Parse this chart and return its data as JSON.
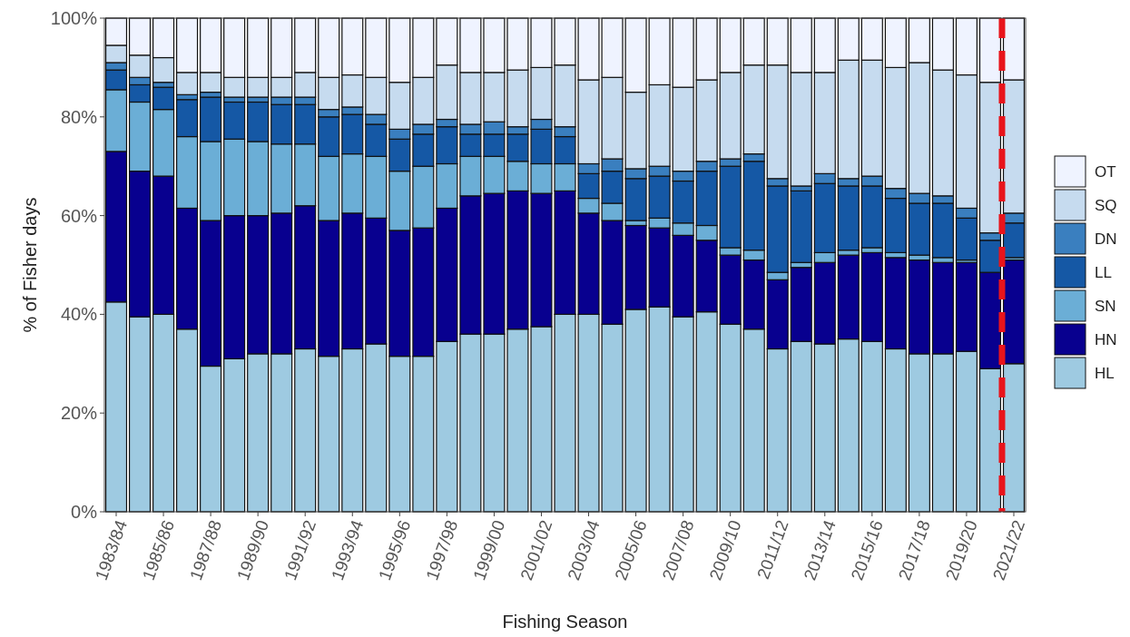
{
  "chart_data": {
    "type": "bar",
    "stacked": true,
    "xlabel": "Fishing Season",
    "ylabel": "% of Fisher days",
    "categories": [
      "1983/84",
      null,
      "1985/86",
      null,
      "1987/88",
      null,
      "1989/90",
      null,
      "1991/92",
      null,
      "1993/94",
      null,
      "1995/96",
      null,
      "1997/98",
      null,
      "1999/00",
      null,
      "2001/02",
      null,
      "2003/04",
      null,
      "2005/06",
      null,
      "2007/08",
      null,
      "2009/10",
      null,
      "2011/12",
      null,
      "2013/14",
      null,
      "2015/16",
      null,
      "2017/18",
      null,
      "2019/20",
      null,
      "2021/22"
    ],
    "series": [
      {
        "name": "HL",
        "color": "#9ecae1",
        "values": [
          42.5,
          39.5,
          40,
          37,
          29.5,
          31,
          32,
          32,
          33,
          31.5,
          33,
          34,
          31.5,
          31.5,
          34.5,
          36,
          36,
          37,
          37.5,
          40,
          40,
          38,
          41,
          41.5,
          39.5,
          40.5,
          38,
          37,
          33,
          34.5,
          34,
          35,
          34.5,
          33,
          32,
          32,
          32.5,
          29,
          30
        ]
      },
      {
        "name": "HN",
        "color": "#08008f",
        "values": [
          30.5,
          29.5,
          28,
          24.5,
          29.5,
          29,
          28,
          28.5,
          29,
          27.5,
          27.5,
          25.5,
          25.5,
          26,
          27,
          28,
          28.5,
          28,
          27,
          25,
          20.5,
          21,
          17,
          16,
          16.5,
          14.5,
          14,
          14,
          14,
          15,
          16.5,
          17,
          18,
          18.5,
          19,
          18.5,
          18,
          19.5,
          21
        ]
      },
      {
        "name": "SN",
        "color": "#6baed6",
        "values": [
          12.5,
          14,
          13.5,
          14.5,
          16,
          15.5,
          15,
          14,
          12.5,
          13,
          12,
          12.5,
          12,
          12.5,
          9,
          8,
          7.5,
          6,
          6,
          5.5,
          3,
          3.5,
          1,
          2,
          2.5,
          3,
          1.5,
          2,
          1.5,
          1,
          2,
          1,
          1,
          1,
          1,
          1,
          0.5,
          0,
          0.5
        ]
      },
      {
        "name": "LL",
        "color": "#1558a5",
        "values": [
          4,
          3.5,
          4.5,
          7.5,
          9,
          7.5,
          8,
          8,
          8,
          8,
          8,
          6.5,
          6.5,
          6.5,
          7.5,
          4.5,
          4.5,
          5.5,
          7,
          5.5,
          5,
          6.5,
          8.5,
          8.5,
          8.5,
          11,
          16.5,
          18,
          17.5,
          14.5,
          14,
          13,
          12.5,
          11,
          10.5,
          11,
          8.5,
          6.5,
          7
        ]
      },
      {
        "name": "DN",
        "color": "#3a7fbf",
        "values": [
          1.5,
          1.5,
          1,
          1,
          1,
          1,
          1,
          1.5,
          1.5,
          1.5,
          1.5,
          2,
          2,
          2,
          1.5,
          2,
          2.5,
          1.5,
          2,
          2,
          2,
          2.5,
          2,
          2,
          2,
          2,
          1.5,
          1.5,
          1.5,
          1,
          2,
          1.5,
          2,
          2,
          2,
          1.5,
          2,
          1.5,
          2
        ]
      },
      {
        "name": "SQ",
        "color": "#c6dbef",
        "values": [
          3.5,
          4.5,
          5,
          4.5,
          4,
          4,
          4,
          4,
          5,
          6.5,
          6.5,
          7.5,
          9.5,
          9.5,
          11,
          10.5,
          10,
          11.5,
          10.5,
          12.5,
          17,
          16.5,
          15.5,
          16.5,
          17,
          16.5,
          17.5,
          18,
          23,
          23,
          20.5,
          24,
          23.5,
          24.5,
          26.5,
          25.5,
          27,
          30.5,
          27
        ]
      },
      {
        "name": "OT",
        "color": "#eff3ff",
        "values": [
          5.5,
          7.5,
          8,
          11,
          11,
          12,
          12,
          12,
          11,
          12,
          11.5,
          12,
          13,
          12,
          9.5,
          11,
          11,
          10.5,
          10,
          9.5,
          12.5,
          12,
          15,
          13.5,
          14,
          12.5,
          11,
          9.5,
          9.5,
          11,
          11,
          8.5,
          8.5,
          10,
          9,
          10.5,
          11.5,
          13,
          12.5
        ]
      }
    ],
    "ylim": [
      0,
      100
    ],
    "yticks": [
      {
        "value": 0,
        "label": "0%"
      },
      {
        "value": 20,
        "label": "20%"
      },
      {
        "value": 40,
        "label": "40%"
      },
      {
        "value": 60,
        "label": "60%"
      },
      {
        "value": 80,
        "label": "80%"
      },
      {
        "value": 100,
        "label": "100%"
      }
    ],
    "ref_lines": [
      {
        "axis": "x",
        "value": "2021/22",
        "color": "#e8141b",
        "line_style": "dashed"
      }
    ],
    "legend": "right",
    "grid": false
  }
}
